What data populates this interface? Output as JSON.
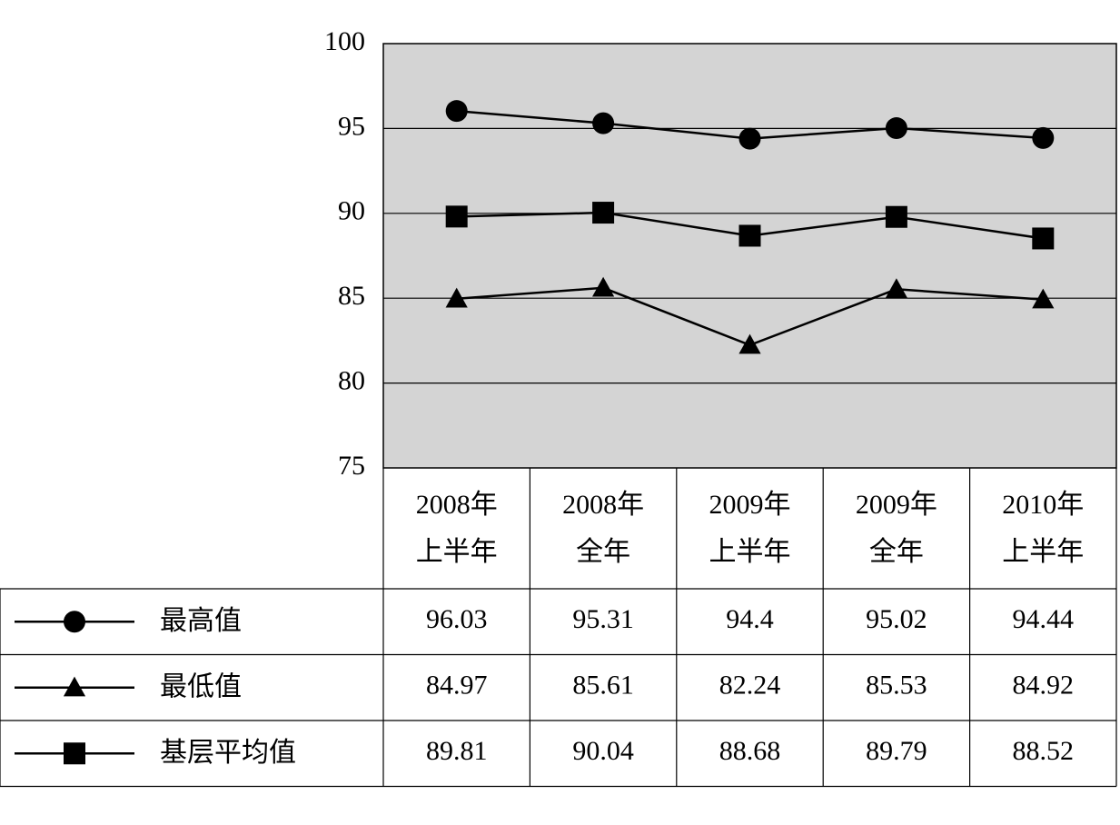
{
  "chart_data": {
    "type": "line",
    "title": "",
    "xlabel": "",
    "ylabel": "",
    "ylim": [
      75,
      100
    ],
    "yticks": [
      75,
      80,
      85,
      90,
      95,
      100
    ],
    "grid": true,
    "legend_placement": "data-table-left",
    "categories": [
      [
        "2008年",
        "上半年"
      ],
      [
        "2008年",
        "全年"
      ],
      [
        "2009年",
        "上半年"
      ],
      [
        "2009年",
        "全年"
      ],
      [
        "2010年",
        "上半年"
      ]
    ],
    "series": [
      {
        "name": "最高值",
        "marker": "circle",
        "values": [
          96.03,
          95.31,
          94.4,
          95.02,
          94.44
        ],
        "labels": [
          "96.03",
          "95.31",
          "94.4",
          "95.02",
          "94.44"
        ]
      },
      {
        "name": "最低值",
        "marker": "triangle",
        "values": [
          84.97,
          85.61,
          82.24,
          85.53,
          84.92
        ],
        "labels": [
          "84.97",
          "85.61",
          "82.24",
          "85.53",
          "84.92"
        ]
      },
      {
        "name": "基层平均值",
        "marker": "square",
        "values": [
          89.81,
          90.04,
          88.68,
          89.79,
          88.52
        ],
        "labels": [
          "89.81",
          "90.04",
          "88.68",
          "89.79",
          "88.52"
        ]
      }
    ],
    "colors": {
      "plot_bg": "#d4d4d4",
      "line": "#000000",
      "grid": "#000000"
    }
  }
}
